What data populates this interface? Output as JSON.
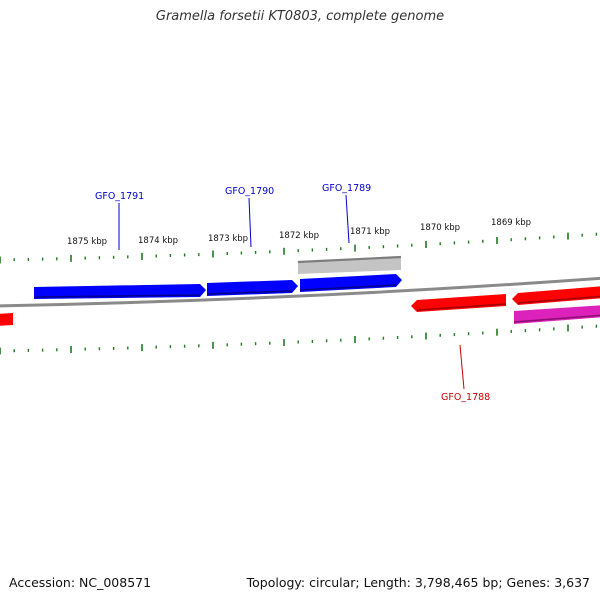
{
  "title": "Gramella forsetii KT0803, complete genome",
  "footer": {
    "accession": "Accession: NC_008571",
    "summary": "Topology: circular; Length: 3,798,465 bp; Genes: 3,637"
  },
  "scale_labels": [
    "1875 kbp",
    "1874 kbp",
    "1873 kbp",
    "1872 kbp",
    "1871 kbp",
    "1870 kbp",
    "1869 kbp"
  ],
  "gene_labels": [
    {
      "id": "GFO_1791",
      "strand": "forward"
    },
    {
      "id": "GFO_1790",
      "strand": "forward"
    },
    {
      "id": "GFO_1789",
      "strand": "forward"
    },
    {
      "id": "GFO_1788",
      "strand": "reverse"
    }
  ],
  "colors": {
    "backbone": "#888888",
    "ticks": "#1f7a1f",
    "forward_gene": "#0000ff",
    "reverse_gene": "#ff0000",
    "rna_gene": "#cc22aa",
    "other_feature": "#c0c0c0",
    "forward_label": "#0000cc",
    "reverse_label": "#cc0000"
  }
}
